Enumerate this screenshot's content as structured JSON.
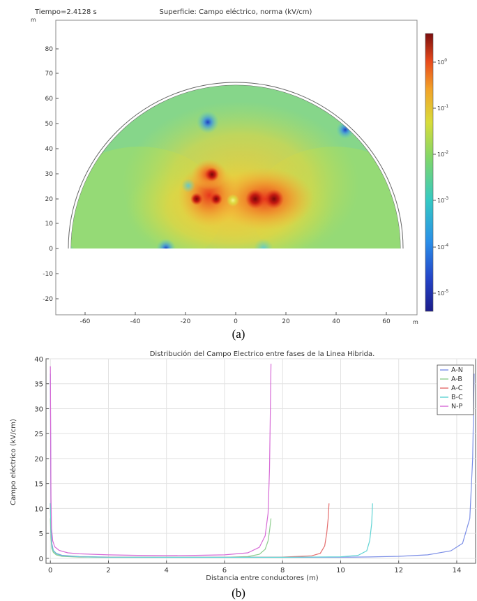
{
  "figure_a": {
    "time_label": "Tiempo=2.4128 s",
    "title": "Superficie: Campo eléctrico, norma (kV/cm)",
    "axis_unit_y": "m",
    "axis_unit_x": "m",
    "x_ticks": [
      "-60",
      "-40",
      "-20",
      "0",
      "20",
      "40",
      "60"
    ],
    "y_ticks": [
      "80",
      "70",
      "60",
      "50",
      "40",
      "30",
      "20",
      "10",
      "0",
      "-10",
      "-20"
    ],
    "colorbar": {
      "ticks": [
        {
          "base": "10",
          "exp": "0"
        },
        {
          "base": "10",
          "exp": "-1"
        },
        {
          "base": "10",
          "exp": "-2"
        },
        {
          "base": "10",
          "exp": "-3"
        },
        {
          "base": "10",
          "exp": "-4"
        },
        {
          "base": "10",
          "exp": "-5"
        }
      ]
    },
    "caption": "(a)"
  },
  "chart_data": {
    "type": "line",
    "title": "Distribución del Campo Electrico entre fases de la Linea Hibrida.",
    "xlabel": "Distancia entre conductores (m)",
    "ylabel": "Campo eléctrico (kV/cm)",
    "xlim": [
      -0.15,
      14.65
    ],
    "ylim": [
      -1,
      40
    ],
    "x_ticks": [
      0,
      2,
      4,
      6,
      8,
      10,
      12,
      14
    ],
    "y_ticks": [
      0,
      5,
      10,
      15,
      20,
      25,
      30,
      35,
      40
    ],
    "grid": true,
    "legend": "top-right",
    "series": [
      {
        "name": "A-N",
        "color": "#7b8ee6",
        "x": [
          0,
          0.02,
          0.05,
          0.1,
          0.2,
          0.4,
          1,
          2,
          4,
          6,
          8,
          10,
          11,
          12,
          13,
          13.8,
          14.2,
          14.45,
          14.55,
          14.6
        ],
        "y": [
          37,
          8,
          3,
          1.6,
          1.0,
          0.6,
          0.35,
          0.25,
          0.2,
          0.2,
          0.2,
          0.22,
          0.28,
          0.4,
          0.7,
          1.5,
          3,
          8,
          20,
          37
        ]
      },
      {
        "name": "A-B",
        "color": "#8fce8f",
        "x": [
          0,
          0.02,
          0.05,
          0.1,
          0.2,
          0.4,
          1,
          2,
          3,
          4,
          5,
          6,
          6.8,
          7.2,
          7.4,
          7.5,
          7.55,
          7.6
        ],
        "y": [
          8,
          4,
          2,
          1.2,
          0.7,
          0.4,
          0.25,
          0.2,
          0.2,
          0.2,
          0.2,
          0.22,
          0.35,
          0.8,
          1.8,
          3.5,
          5.5,
          8
        ]
      },
      {
        "name": "A-C",
        "color": "#e46d6d",
        "x": [
          0,
          0.02,
          0.05,
          0.1,
          0.2,
          0.4,
          1,
          2,
          4,
          6,
          8,
          9,
          9.3,
          9.45,
          9.52,
          9.57,
          9.6
        ],
        "y": [
          11,
          5,
          2.5,
          1.5,
          0.9,
          0.5,
          0.3,
          0.22,
          0.2,
          0.2,
          0.25,
          0.5,
          1,
          2.5,
          5,
          8,
          11
        ]
      },
      {
        "name": "B-C",
        "color": "#5fd3d3",
        "x": [
          0,
          0.02,
          0.05,
          0.1,
          0.2,
          0.4,
          1,
          2,
          4,
          6,
          8,
          10,
          10.6,
          10.9,
          11.0,
          11.07,
          11.1
        ],
        "y": [
          11,
          5,
          2.5,
          1.5,
          0.9,
          0.5,
          0.3,
          0.22,
          0.2,
          0.2,
          0.2,
          0.3,
          0.6,
          1.5,
          3.5,
          7,
          11
        ]
      },
      {
        "name": "N-P",
        "color": "#d66ad6",
        "x": [
          0,
          0.02,
          0.04,
          0.08,
          0.15,
          0.3,
          0.6,
          1,
          2,
          3,
          4,
          5,
          6,
          6.8,
          7.2,
          7.4,
          7.5,
          7.55,
          7.6
        ],
        "y": [
          38.5,
          12,
          6,
          3.5,
          2.3,
          1.6,
          1.1,
          0.9,
          0.7,
          0.6,
          0.55,
          0.6,
          0.7,
          1.1,
          2.2,
          4.5,
          9,
          18,
          39
        ]
      }
    ]
  },
  "figure_b_caption": "(b)"
}
